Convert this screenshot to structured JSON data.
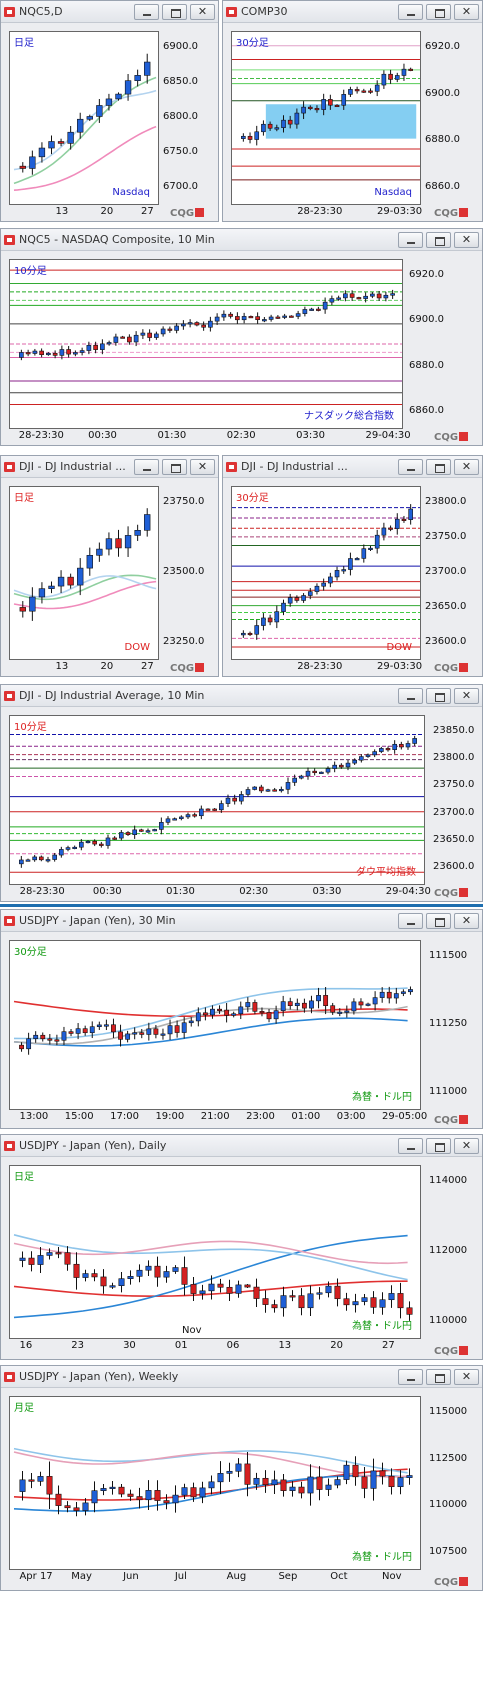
{
  "windows": [
    {
      "id": "w1",
      "title": "NQC5,D",
      "box": "",
      "label": "日足",
      "labelColor": "#2222cc",
      "inst": "Nasdaq",
      "instColor": "#2222cc",
      "ylabels": [
        "6900.0",
        "6850.0",
        "6800.0",
        "6750.0",
        "6700.0"
      ],
      "xlabels": [
        "13",
        "20",
        "27"
      ]
    },
    {
      "id": "w2",
      "title": "COMP30",
      "label": "30分足",
      "labelColor": "#2222cc",
      "inst": "Nasdaq",
      "instColor": "#2222cc",
      "ylabels": [
        "6920.0",
        "6900.0",
        "6880.0",
        "6860.0"
      ],
      "xlabels": [
        "28-23:30",
        "29-03:30"
      ]
    },
    {
      "id": "w3",
      "title": "NQC5 - NASDAQ Composite, 10 Min",
      "label": "10分足",
      "labelColor": "#2222cc",
      "inst": "ナスダック総合指数",
      "instColor": "#2222cc",
      "ylabels": [
        "6920.0",
        "6900.0",
        "6880.0",
        "6860.0"
      ],
      "xlabels": [
        "28-23:30",
        "00:30",
        "01:30",
        "02:30",
        "03:30",
        "29-04:30"
      ]
    },
    {
      "id": "w4",
      "title": "DJI - DJ Industrial ...",
      "label": "日足",
      "labelColor": "#dd2222",
      "inst": "DOW",
      "instColor": "#dd2222",
      "ylabels": [
        "23750.0",
        "23500.0",
        "23250.0"
      ],
      "xlabels": [
        "13",
        "20",
        "27"
      ]
    },
    {
      "id": "w5",
      "title": "DJI - DJ Industrial ...",
      "label": "30分足",
      "labelColor": "#dd2222",
      "inst": "DOW",
      "instColor": "#dd2222",
      "ylabels": [
        "23800.0",
        "23750.0",
        "23700.0",
        "23650.0",
        "23600.0"
      ],
      "xlabels": [
        "28-23:30",
        "29-03:30"
      ]
    },
    {
      "id": "w6",
      "title": "DJI - DJ Industrial Average, 10 Min",
      "label": "10分足",
      "labelColor": "#dd2222",
      "inst": "ダウ平均指数",
      "instColor": "#dd2222",
      "ylabels": [
        "23850.0",
        "23800.0",
        "23750.0",
        "23700.0",
        "23650.0",
        "23600.0"
      ],
      "xlabels": [
        "28-23:30",
        "00:30",
        "01:30",
        "02:30",
        "03:30",
        "29-04:30"
      ]
    },
    {
      "id": "w7",
      "title": "USDJPY - Japan (Yen), 30 Min",
      "label": "30分足",
      "labelColor": "#119911",
      "inst": "為替・ドル円",
      "instColor": "#119911",
      "ylabels": [
        "111500",
        "111250",
        "111000"
      ],
      "xlabels": [
        "13:00",
        "15:00",
        "17:00",
        "19:00",
        "21:00",
        "23:00",
        "01:00",
        "03:00",
        "29-05:00"
      ]
    },
    {
      "id": "w8",
      "title": "USDJPY - Japan (Yen), Daily",
      "label": "日足",
      "labelColor": "#119911",
      "inst": "為替・ドル円",
      "instColor": "#119911",
      "ylabels": [
        "114000",
        "112000",
        "110000"
      ],
      "xlabels": [
        "16",
        "23",
        "30",
        "01",
        "06",
        "13",
        "20",
        "27"
      ],
      "xextra": "Nov"
    },
    {
      "id": "w9",
      "title": "USDJPY - Japan (Yen), Weekly",
      "label": "月足",
      "labelColor": "#119911",
      "inst": "為替・ドル円",
      "instColor": "#119911",
      "ylabels": [
        "115000",
        "112500",
        "110000",
        "107500"
      ],
      "xlabels": [
        "Apr 17",
        "May",
        "Jun",
        "Jul",
        "Aug",
        "Sep",
        "Oct",
        "Nov"
      ]
    }
  ],
  "cqg": "CQG",
  "colors": {
    "up": "#1f5fd6",
    "down": "#d42020",
    "frame": "#ecedf0"
  },
  "icons": {
    "minimize": "minimize-icon",
    "maximize": "maximize-icon",
    "close": "close-icon"
  }
}
